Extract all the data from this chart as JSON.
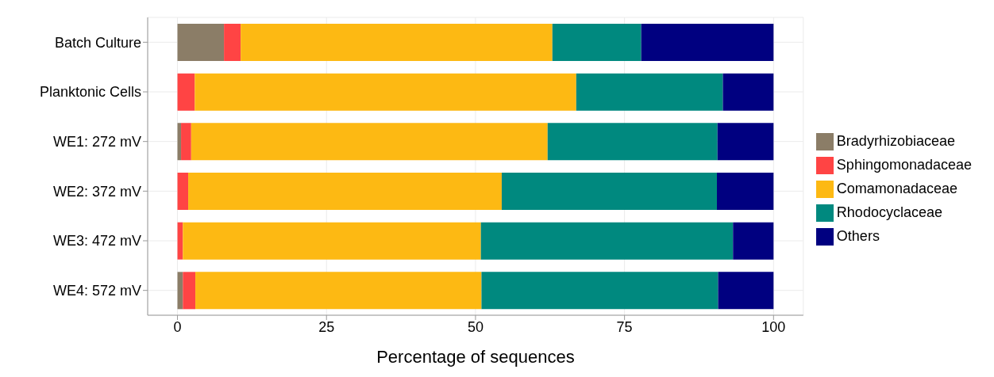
{
  "chart_data": {
    "type": "bar",
    "orientation": "horizontal",
    "stacked": true,
    "xlabel": "Percentage of sequences",
    "categories": [
      "Batch Culture",
      "Planktonic Cells",
      "WE1: 272 mV",
      "WE2: 372 mV",
      "WE3: 472 mV",
      "WE4: 572 mV"
    ],
    "series": [
      {
        "name": "Bradyrhizobiaceae",
        "color": "#8b7d67",
        "values": [
          7.8,
          0,
          0.6,
          0,
          0,
          0.9
        ]
      },
      {
        "name": "Sphingomonadaceae",
        "color": "#ff4444",
        "values": [
          2.8,
          2.9,
          1.7,
          1.8,
          0.9,
          2.1
        ]
      },
      {
        "name": "Comamonadaceae",
        "color": "#fdb913",
        "values": [
          52.3,
          64.0,
          59.8,
          52.6,
          50.0,
          48.0
        ]
      },
      {
        "name": "Rhodocyclaceae",
        "color": "#00897f",
        "values": [
          14.9,
          24.6,
          28.5,
          36.1,
          42.3,
          39.7
        ]
      },
      {
        "name": "Others",
        "color": "#000080",
        "values": [
          22.2,
          8.5,
          9.4,
          9.5,
          6.8,
          9.3
        ]
      }
    ],
    "xlim": [
      -5,
      105
    ],
    "xticks": [
      0,
      25,
      50,
      75,
      100
    ],
    "grid": true,
    "legend": "right"
  }
}
